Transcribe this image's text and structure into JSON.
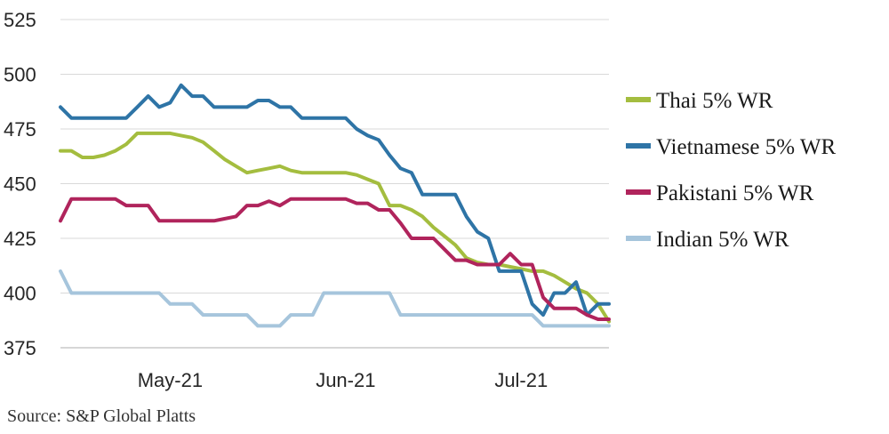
{
  "chart_data": {
    "type": "line",
    "title": "",
    "xlabel": "",
    "ylabel": "",
    "ylim": [
      375,
      525
    ],
    "yticks": [
      375,
      400,
      425,
      450,
      475,
      500,
      525
    ],
    "x_unit": "week",
    "x_range": [
      0,
      25
    ],
    "xticks": [
      {
        "x": 5,
        "label": "May-21"
      },
      {
        "x": 13,
        "label": "Jun-21"
      },
      {
        "x": 21,
        "label": "Jul-21"
      }
    ],
    "grid": "horizontal",
    "legend_position": "right",
    "source": "Source: S&P Global Platts",
    "series": [
      {
        "name": "Thai 5% WR",
        "color": "#a4bd3f",
        "x": [
          0,
          0.5,
          1,
          1.5,
          2,
          2.5,
          3,
          3.5,
          4,
          4.5,
          5,
          5.5,
          6,
          6.5,
          7,
          7.5,
          8,
          8.5,
          9,
          9.5,
          10,
          10.5,
          11,
          11.5,
          12,
          12.5,
          13,
          13.5,
          14,
          14.5,
          15,
          15.5,
          16,
          16.5,
          17,
          17.5,
          18,
          18.5,
          19,
          19.5,
          20,
          20.5,
          21,
          21.5,
          22,
          22.5,
          23,
          23.5,
          24,
          24.5,
          25
        ],
        "y": [
          465,
          465,
          462,
          462,
          463,
          465,
          468,
          473,
          473,
          473,
          473,
          472,
          471,
          469,
          465,
          461,
          458,
          455,
          456,
          457,
          458,
          456,
          455,
          455,
          455,
          455,
          455,
          454,
          452,
          450,
          440,
          440,
          438,
          435,
          430,
          426,
          422,
          416,
          414,
          413,
          413,
          412,
          411,
          410,
          410,
          408,
          405,
          402,
          400,
          395,
          387
        ]
      },
      {
        "name": "Vietnamese 5% WR",
        "color": "#2e74a6",
        "x": [
          0,
          0.5,
          1,
          1.5,
          2,
          2.5,
          3,
          3.5,
          4,
          4.5,
          5,
          5.5,
          6,
          6.5,
          7,
          7.5,
          8,
          8.5,
          9,
          9.5,
          10,
          10.5,
          11,
          11.5,
          12,
          12.5,
          13,
          13.5,
          14,
          14.5,
          15,
          15.5,
          16,
          16.5,
          17,
          17.5,
          18,
          18.5,
          19,
          19.5,
          20,
          20.5,
          21,
          21.5,
          22,
          22.5,
          23,
          23.5,
          24,
          24.5,
          25
        ],
        "y": [
          485,
          480,
          480,
          480,
          480,
          480,
          480,
          485,
          490,
          485,
          487,
          495,
          490,
          490,
          485,
          485,
          485,
          485,
          488,
          488,
          485,
          485,
          480,
          480,
          480,
          480,
          480,
          475,
          472,
          470,
          463,
          457,
          455,
          445,
          445,
          445,
          445,
          435,
          428,
          425,
          410,
          410,
          410,
          395,
          390,
          400,
          400,
          405,
          390,
          395,
          395
        ]
      },
      {
        "name": "Pakistani 5% WR",
        "color": "#b0245c",
        "x": [
          0,
          0.5,
          1,
          1.5,
          2,
          2.5,
          3,
          3.5,
          4,
          4.5,
          5,
          5.5,
          6,
          6.5,
          7,
          7.5,
          8,
          8.5,
          9,
          9.5,
          10,
          10.5,
          11,
          11.5,
          12,
          12.5,
          13,
          13.5,
          14,
          14.5,
          15,
          15.5,
          16,
          16.5,
          17,
          17.5,
          18,
          18.5,
          19,
          19.5,
          20,
          20.5,
          21,
          21.5,
          22,
          22.5,
          23,
          23.5,
          24,
          24.5,
          25
        ],
        "y": [
          433,
          443,
          443,
          443,
          443,
          443,
          440,
          440,
          440,
          433,
          433,
          433,
          433,
          433,
          433,
          434,
          435,
          440,
          440,
          442,
          440,
          443,
          443,
          443,
          443,
          443,
          443,
          441,
          441,
          438,
          438,
          432,
          425,
          425,
          425,
          420,
          415,
          415,
          413,
          413,
          413,
          418,
          413,
          413,
          398,
          393,
          393,
          393,
          390,
          388,
          388
        ]
      },
      {
        "name": "Indian 5% WR",
        "color": "#a6c5dc",
        "x": [
          0,
          0.5,
          1,
          1.5,
          2,
          2.5,
          3,
          3.5,
          4,
          4.5,
          5,
          5.5,
          6,
          6.5,
          7,
          7.5,
          8,
          8.5,
          9,
          9.5,
          10,
          10.5,
          11,
          11.5,
          12,
          12.5,
          13,
          13.5,
          14,
          14.5,
          15,
          15.5,
          16,
          16.5,
          17,
          17.5,
          18,
          18.5,
          19,
          19.5,
          20,
          20.5,
          21,
          21.5,
          22,
          22.5,
          23,
          23.5,
          24,
          24.5,
          25
        ],
        "y": [
          410,
          400,
          400,
          400,
          400,
          400,
          400,
          400,
          400,
          400,
          395,
          395,
          395,
          390,
          390,
          390,
          390,
          390,
          385,
          385,
          385,
          390,
          390,
          390,
          400,
          400,
          400,
          400,
          400,
          400,
          400,
          390,
          390,
          390,
          390,
          390,
          390,
          390,
          390,
          390,
          390,
          390,
          390,
          390,
          385,
          385,
          385,
          385,
          385,
          385,
          385
        ]
      }
    ]
  }
}
